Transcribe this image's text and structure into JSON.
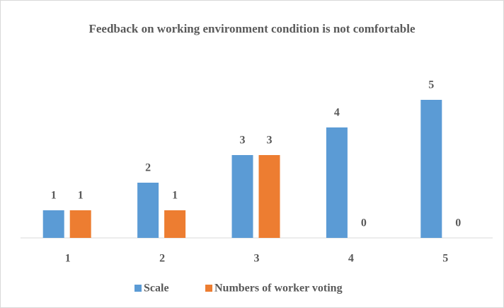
{
  "chart_data": {
    "type": "bar",
    "title": "Feedback on working environment condition is not comfortable",
    "categories": [
      "1",
      "2",
      "3",
      "4",
      "5"
    ],
    "series": [
      {
        "name": "Scale",
        "color": "#5b9bd5",
        "values": [
          1,
          2,
          3,
          4,
          5
        ]
      },
      {
        "name": "Numbers of worker voting",
        "color": "#ed7d31",
        "values": [
          1,
          1,
          3,
          0,
          0
        ]
      }
    ],
    "ylim": [
      0,
      6
    ],
    "legend": "bottom"
  }
}
